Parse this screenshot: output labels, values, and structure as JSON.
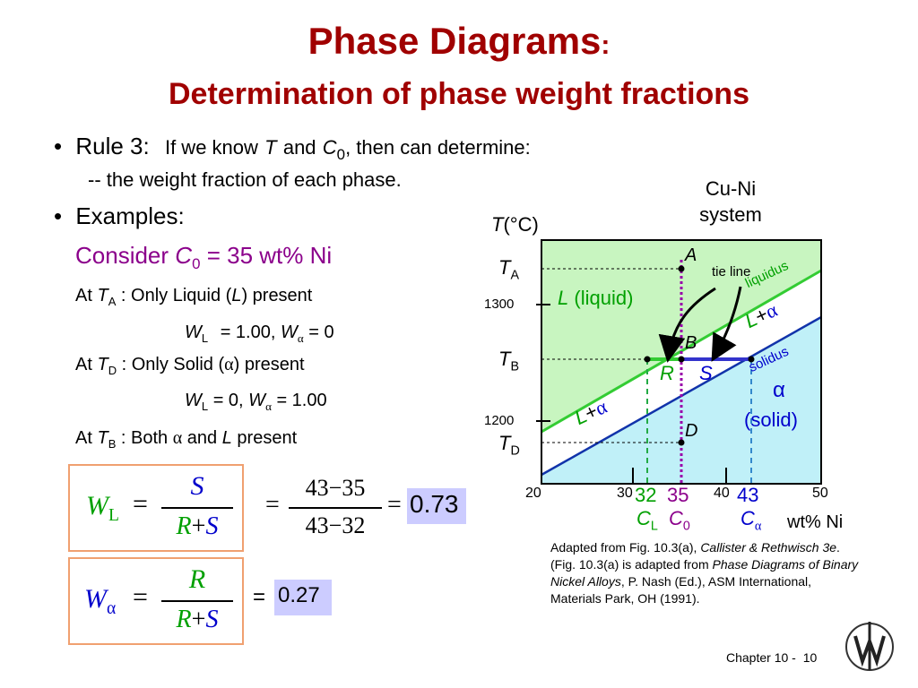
{
  "title": "Phase Diagrams",
  "title_colon": ":",
  "subtitle": "Determination of phase weight fractions",
  "rule": {
    "bullet": "•",
    "lead": "Rule 3:",
    "text1": "If we know",
    "T": "T",
    "and": "and",
    "C": "C",
    "C_sub": "0",
    "text2": ", then can determine:",
    "sub_line": "-- the weight fraction of each phase."
  },
  "examples": {
    "bullet": "•",
    "label": "Examples:",
    "consider": "Consider",
    "C": "C",
    "C_sub": "0",
    "consider_value": "= 35 wt% Ni",
    "at": "At",
    "TA_T": "T",
    "TA_sub": "A",
    "TA_text": ": Only Liquid (",
    "L": "L",
    "TA_end": ") present",
    "TA_result_W": "W",
    "TA_result_Wsub": "L",
    "TA_result_val1": "= 1.00,",
    "TA_result_W2": "W",
    "alpha": "α",
    "TA_result_val2": "= 0",
    "TD_T": "T",
    "TD_sub": "D",
    "TD_text": ":  Only Solid  (",
    "TD_end": ") present",
    "TD_result_val1": "= 0,",
    "TD_result_val2": "= 1.00",
    "TB_T": "T",
    "TB_sub": "B",
    "TB_text": ":  Both",
    "TB_and": "and",
    "TB_end": "present"
  },
  "formulas": {
    "eq": "=",
    "plus": "+",
    "minus": "−",
    "W": "W",
    "L_sub": "L",
    "alpha": "α",
    "S": "S",
    "R": "R",
    "n43": "43",
    "n35": "35",
    "n32": "32",
    "result_L": "0.73",
    "result_alpha_prefix": "=",
    "result_alpha": "0.27"
  },
  "diagram": {
    "system_line1": "Cu-Ni",
    "system_line2": "system",
    "y_axis_T": "T",
    "y_axis_unit": "(°C)",
    "TA": "T",
    "TA_sub": "A",
    "TB": "T",
    "TB_sub": "B",
    "TD": "T",
    "TD_sub": "D",
    "tick_1300": "1300",
    "tick_1200": "1200",
    "x_ticks": [
      "20",
      "30",
      "40",
      "50"
    ],
    "x_32": "32",
    "x_35": "35",
    "x_43": "43",
    "CL": "C",
    "CL_sub": "L",
    "C0": "C",
    "C0_sub": "0",
    "Ca": "C",
    "Ca_sub": "α",
    "x_axis_label": "wt% Ni",
    "point_A": "A",
    "point_B": "B",
    "point_D": "D",
    "R": "R",
    "S": "S",
    "tie_line": "tie line",
    "liquidus": "liquidus",
    "solidus": "solidus",
    "L_liquid_L": "L",
    "L_liquid_text": "(liquid)",
    "L_alpha_L": "L",
    "L_alpha_plus": "+",
    "alpha": "α",
    "solid_text": "(solid)",
    "colors": {
      "liquid_fill": "#c8f5c0",
      "solid_fill": "#c0f0f8",
      "liquidus_line": "#33cc33",
      "solidus_line": "#1133aa",
      "tie_line": "#3333cc",
      "C0_line": "#9900aa"
    }
  },
  "credit": {
    "text1": "Adapted from Fig. 10.3(a),",
    "italic1": "Callister & Rethwisch 3e",
    "text2": ". (Fig. 10.3(a) is adapted from",
    "italic2": "Phase Diagrams of Binary Nickel Alloys",
    "text3": ", P. Nash (Ed.), ASM International, Materials Park, OH (1991)."
  },
  "footer": {
    "chapter": "Chapter 10 -",
    "page": "10",
    "logo_text": "W"
  }
}
